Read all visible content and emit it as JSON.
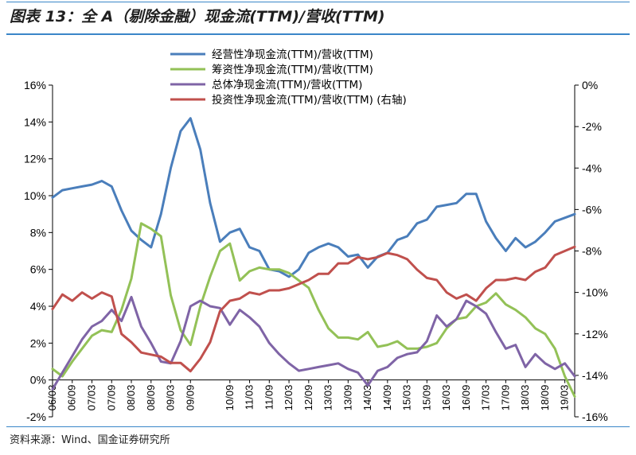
{
  "header": {
    "title": "图表 13：全 A（剔除金融）现金流(TTM)/营收(TTM)"
  },
  "footer": {
    "source": "资料来源：Wind、国金证券研究所"
  },
  "chart_data": {
    "type": "line",
    "title": "图表 13：全 A（剔除金融）现金流(TTM)/营收(TTM)",
    "x": [
      "06/03",
      "06/06",
      "06/09",
      "06/12",
      "07/03",
      "07/06",
      "07/09",
      "07/12",
      "08/03",
      "08/06",
      "08/09",
      "08/12",
      "09/03",
      "09/06",
      "09/09",
      "09/12",
      "10/03",
      "10/06",
      "10/09",
      "10/12",
      "11/03",
      "11/06",
      "11/09",
      "11/12",
      "12/03",
      "12/06",
      "12/09",
      "12/12",
      "13/03",
      "13/06",
      "13/09",
      "13/12",
      "14/03",
      "14/06",
      "14/09",
      "14/12",
      "15/03",
      "15/06",
      "15/09",
      "15/12",
      "16/03",
      "16/06",
      "16/09",
      "16/12",
      "17/03",
      "17/06",
      "17/09",
      "17/12",
      "18/03",
      "18/06",
      "18/09",
      "18/12",
      "19/03",
      "19/06"
    ],
    "x_tick_labels": [
      "06/03",
      "06/09",
      "07/03",
      "07/09",
      "08/03",
      "08/09",
      "09/03",
      "09/09",
      "10/09",
      "11/03",
      "11/09",
      "12/03",
      "12/09",
      "13/03",
      "13/09",
      "14/03",
      "14/09",
      "15/03",
      "15/09",
      "16/03",
      "16/09",
      "17/03",
      "17/09",
      "18/03",
      "18/09",
      "19/03"
    ],
    "y_left": {
      "ticks": [
        "16%",
        "14%",
        "12%",
        "10%",
        "8%",
        "6%",
        "4%",
        "2%",
        "0%",
        "-2%"
      ],
      "ylim": [
        -2,
        16
      ]
    },
    "y_right": {
      "ticks": [
        "0%",
        "-2%",
        "-4%",
        "-6%",
        "-8%",
        "-10%",
        "-12%",
        "-14%",
        "-16%"
      ],
      "ylim": [
        -16,
        0
      ]
    },
    "legend_position": "top-center",
    "grid": false,
    "series": [
      {
        "name": "经营性净现金流(TTM)/营收(TTM)",
        "color": "#4a7ebb",
        "axis": "left",
        "values": [
          9.9,
          10.3,
          10.4,
          10.5,
          10.6,
          10.8,
          10.5,
          9.2,
          8.1,
          7.6,
          7.2,
          9.0,
          11.5,
          13.5,
          14.2,
          12.5,
          9.6,
          7.5,
          8.0,
          8.2,
          7.2,
          7.0,
          6.0,
          5.9,
          5.6,
          6.0,
          6.9,
          7.2,
          7.4,
          7.2,
          6.7,
          6.8,
          6.1,
          6.7,
          6.9,
          7.6,
          7.8,
          8.5,
          8.7,
          9.4,
          9.5,
          9.6,
          10.1,
          10.1,
          8.6,
          7.7,
          7.0,
          7.7,
          7.2,
          7.5,
          8.0,
          8.6,
          8.8,
          9.0
        ]
      },
      {
        "name": "筹资性净现金流(TTM)/营收(TTM)",
        "color": "#93c157",
        "axis": "left",
        "values": [
          0.6,
          0.2,
          1.0,
          1.7,
          2.4,
          2.7,
          2.6,
          3.8,
          5.5,
          8.5,
          8.2,
          7.8,
          4.6,
          2.7,
          1.9,
          4.0,
          5.6,
          7.0,
          7.4,
          5.4,
          5.9,
          6.1,
          6.0,
          6.0,
          5.8,
          5.4,
          5.0,
          3.8,
          2.8,
          2.3,
          2.3,
          2.2,
          2.6,
          1.8,
          1.9,
          2.1,
          1.7,
          1.7,
          1.8,
          2.0,
          2.8,
          3.3,
          3.4,
          4.0,
          4.2,
          4.7,
          4.1,
          3.8,
          3.4,
          2.8,
          2.5,
          1.7,
          0.2,
          -0.9
        ]
      },
      {
        "name": "总体净现金流(TTM)/营收(TTM)",
        "color": "#7f64a6",
        "axis": "left",
        "values": [
          -0.5,
          0.4,
          1.3,
          2.2,
          2.9,
          3.2,
          3.8,
          3.2,
          4.5,
          2.9,
          2.0,
          1.0,
          0.9,
          2.1,
          4.0,
          4.3,
          4.0,
          3.9,
          3.0,
          3.8,
          3.4,
          2.9,
          2.0,
          1.4,
          0.9,
          0.5,
          0.6,
          0.7,
          0.8,
          0.9,
          0.6,
          0.4,
          -0.3,
          0.5,
          0.7,
          1.2,
          1.4,
          1.5,
          2.1,
          3.5,
          2.9,
          3.3,
          4.3,
          4.0,
          3.6,
          2.6,
          1.7,
          1.9,
          0.7,
          1.4,
          0.9,
          0.6,
          0.9,
          0.2
        ]
      },
      {
        "name": "投资性净现金流(TTM)/营收(TTM) (右轴)",
        "color": "#c0504d",
        "axis": "right",
        "values": [
          -10.8,
          -10.1,
          -10.4,
          -10.0,
          -10.3,
          -10.0,
          -10.2,
          -12.0,
          -12.4,
          -12.9,
          -13.0,
          -13.1,
          -13.4,
          -13.4,
          -13.8,
          -13.2,
          -12.4,
          -10.9,
          -10.4,
          -10.3,
          -10.0,
          -10.1,
          -9.9,
          -9.9,
          -9.8,
          -9.6,
          -9.4,
          -9.1,
          -9.1,
          -8.6,
          -8.6,
          -8.3,
          -8.4,
          -8.3,
          -8.1,
          -8.2,
          -8.4,
          -8.9,
          -9.3,
          -9.4,
          -10.0,
          -10.3,
          -10.1,
          -10.4,
          -9.8,
          -9.4,
          -9.4,
          -9.3,
          -9.4,
          -9.0,
          -8.8,
          -8.2,
          -8.0,
          -7.8
        ]
      }
    ]
  }
}
